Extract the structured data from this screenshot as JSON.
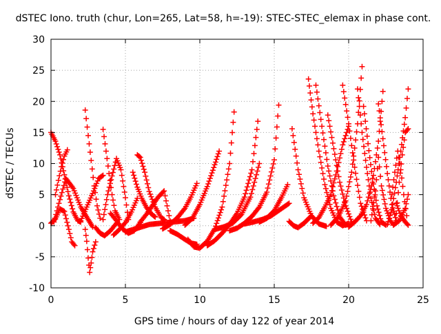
{
  "chart_data": {
    "type": "scatter",
    "title": "dSTEC Iono. truth (chur, Lon=265, Lat=58, h=-19): STEC-STEC_elemax in phase cont.",
    "xlabel": "GPS time / hours of day 122 of year 2014",
    "ylabel": "dSTEC  / TECUs",
    "xlim": [
      0,
      25
    ],
    "ylim": [
      -10,
      30
    ],
    "x_ticks": [
      0,
      5,
      10,
      15,
      20,
      25
    ],
    "x_tick_labels": [
      "0",
      "5",
      "10",
      "15",
      "20",
      "25"
    ],
    "y_ticks": [
      -10,
      -5,
      0,
      5,
      10,
      15,
      20,
      25,
      30
    ],
    "y_tick_labels": [
      "-10",
      "-5",
      "0",
      "5",
      "10",
      "15",
      "20",
      "25",
      "30"
    ],
    "grid": true,
    "grid_style": "dotted",
    "marker": "+",
    "color": "#ff0000",
    "series": [
      {
        "x": [
          0.0,
          0.3,
          0.6,
          0.9,
          1.2,
          1.5,
          1.8,
          2.0
        ],
        "y": [
          15.0,
          13.6,
          11.4,
          8.2,
          4.8,
          2.2,
          0.8,
          0.6
        ]
      },
      {
        "x": [
          0.0,
          0.3,
          0.6,
          0.9,
          1.2,
          1.4,
          1.6
        ],
        "y": [
          0.4,
          1.1,
          2.7,
          2.3,
          -0.6,
          -2.6,
          -3.2
        ]
      },
      {
        "x": [
          0.3,
          0.5,
          0.7,
          0.9,
          1.1
        ],
        "y": [
          5.0,
          7.3,
          9.5,
          11.2,
          12.2
        ]
      },
      {
        "x": [
          0.2,
          0.6,
          1.0,
          1.5,
          2.0,
          2.5,
          2.8
        ],
        "y": [
          0.6,
          4.2,
          7.6,
          6.0,
          3.0,
          1.0,
          -0.2
        ]
      },
      {
        "x": [
          2.3,
          2.5,
          2.7,
          2.9,
          3.1,
          3.3
        ],
        "y": [
          18.6,
          14.5,
          10.5,
          6.4,
          3.2,
          1.2
        ]
      },
      {
        "x": [
          2.3,
          2.4,
          2.5,
          2.6,
          2.7,
          2.8,
          3.0
        ],
        "y": [
          -0.6,
          -2.5,
          -5.2,
          -7.5,
          -6.0,
          -4.2,
          -2.6
        ]
      },
      {
        "x": [
          2.0,
          2.4,
          2.8,
          3.2,
          3.5
        ],
        "y": [
          0.8,
          3.0,
          5.2,
          7.6,
          8.1
        ]
      },
      {
        "x": [
          3.5,
          3.7,
          3.9,
          4.1,
          4.3,
          4.6
        ],
        "y": [
          15.5,
          12.0,
          8.4,
          5.0,
          2.4,
          1.0
        ]
      },
      {
        "x": [
          3.5,
          3.8,
          4.1,
          4.4,
          4.7,
          5.0,
          5.2
        ],
        "y": [
          1.0,
          5.0,
          8.0,
          10.8,
          9.0,
          4.5,
          1.0
        ]
      },
      {
        "x": [
          3.0,
          3.3,
          3.6,
          4.0,
          4.4
        ],
        "y": [
          -0.3,
          -1.2,
          -1.6,
          -0.8,
          0.4
        ]
      },
      {
        "x": [
          4.0,
          4.4,
          4.8,
          5.2,
          5.6,
          6.0
        ],
        "y": [
          2.0,
          0.8,
          -0.5,
          -1.2,
          -0.8,
          0.5
        ]
      },
      {
        "x": [
          4.2,
          4.6,
          5.0,
          5.4,
          5.8
        ],
        "y": [
          -1.5,
          -0.6,
          0.5,
          2.2,
          4.4
        ]
      },
      {
        "x": [
          5.8,
          6.0,
          6.3,
          6.6,
          7.0,
          7.4,
          7.6
        ],
        "y": [
          11.4,
          11.0,
          8.6,
          5.5,
          3.0,
          1.3,
          1.0
        ]
      },
      {
        "x": [
          5.5,
          5.8,
          6.1,
          6.4,
          6.7,
          7.0
        ],
        "y": [
          8.6,
          6.2,
          4.4,
          3.0,
          2.0,
          1.4
        ]
      },
      {
        "x": [
          6.0,
          6.4,
          6.8,
          7.2,
          7.6,
          8.0
        ],
        "y": [
          0.6,
          1.8,
          3.2,
          4.6,
          5.6,
          0.8
        ]
      },
      {
        "x": [
          5.0,
          5.8,
          6.6,
          7.4,
          8.2,
          9.0,
          9.6
        ],
        "y": [
          -1.0,
          -0.4,
          0.2,
          0.4,
          0.6,
          0.8,
          1.2
        ]
      },
      {
        "x": [
          7.5,
          8.0,
          8.5,
          9.0,
          9.4,
          9.8
        ],
        "y": [
          -0.5,
          0.2,
          1.3,
          2.8,
          4.6,
          6.8
        ]
      },
      {
        "x": [
          8.0,
          8.5,
          9.0,
          9.4,
          9.8
        ],
        "y": [
          -0.8,
          -1.4,
          -2.2,
          -2.8,
          -3.0
        ]
      },
      {
        "x": [
          9.2,
          9.6,
          10.0,
          10.5,
          11.0,
          11.5,
          12.0,
          12.3
        ],
        "y": [
          -2.2,
          -3.4,
          -3.6,
          -2.5,
          -0.5,
          3.0,
          10.0,
          18.3
        ]
      },
      {
        "x": [
          9.0,
          9.5,
          10.0,
          10.5,
          11.0,
          11.3
        ],
        "y": [
          0.1,
          1.2,
          3.4,
          6.3,
          9.8,
          12.0
        ]
      },
      {
        "x": [
          10.5,
          11.0,
          11.5,
          12.0,
          12.5,
          13.0,
          13.5,
          13.9
        ],
        "y": [
          -3.2,
          -2.4,
          -1.2,
          0.2,
          2.0,
          4.6,
          9.0,
          16.8
        ]
      },
      {
        "x": [
          12.0,
          12.5,
          13.0,
          13.5,
          14.0,
          14.5,
          15.0,
          15.3
        ],
        "y": [
          -0.8,
          -0.4,
          0.4,
          1.5,
          3.0,
          5.4,
          10.6,
          19.4
        ]
      },
      {
        "x": [
          11.0,
          11.6,
          12.2,
          12.8,
          13.4,
          14.0
        ],
        "y": [
          -0.6,
          -0.2,
          0.4,
          1.8,
          4.6,
          10.0
        ]
      },
      {
        "x": [
          14.0,
          14.5,
          15.0,
          15.5,
          15.9
        ],
        "y": [
          0.6,
          1.2,
          2.4,
          4.6,
          6.6
        ]
      },
      {
        "x": [
          13.0,
          13.6,
          14.2,
          14.8,
          15.4,
          16.0
        ],
        "y": [
          0.3,
          0.6,
          1.0,
          1.6,
          2.6,
          3.6
        ]
      },
      {
        "x": [
          16.0,
          16.3,
          16.6,
          17.0,
          17.5
        ],
        "y": [
          0.7,
          0.0,
          -0.3,
          0.4,
          1.6
        ]
      },
      {
        "x": [
          16.2,
          16.6,
          17.0,
          17.5,
          18.0,
          18.5
        ],
        "y": [
          15.6,
          9.0,
          4.5,
          1.6,
          0.3,
          -0.1
        ]
      },
      {
        "x": [
          17.6,
          18.0,
          18.4,
          18.8,
          19.2,
          19.6,
          20.0
        ],
        "y": [
          0.4,
          1.3,
          3.0,
          5.0,
          8.8,
          13.0,
          16.0
        ]
      },
      {
        "x": [
          17.3,
          17.6,
          18.0,
          18.4,
          18.8,
          19.2,
          19.6,
          20.0
        ],
        "y": [
          23.6,
          18.0,
          12.0,
          6.6,
          2.8,
          0.6,
          0.0,
          0.4
        ]
      },
      {
        "x": [
          17.8,
          18.2,
          18.6,
          19.0,
          19.4,
          19.8
        ],
        "y": [
          22.6,
          16.0,
          9.6,
          4.8,
          1.4,
          0.1
        ]
      },
      {
        "x": [
          18.6,
          19.0,
          19.4,
          19.8,
          20.2
        ],
        "y": [
          17.8,
          12.4,
          7.0,
          3.2,
          0.6
        ]
      },
      {
        "x": [
          18.8,
          19.3,
          19.8,
          20.2,
          20.6,
          20.9
        ],
        "y": [
          0.1,
          1.4,
          4.0,
          8.6,
          16.4,
          25.6
        ]
      },
      {
        "x": [
          19.6,
          20.0,
          20.4,
          20.8,
          21.2
        ],
        "y": [
          22.6,
          16.4,
          9.4,
          3.6,
          0.8
        ]
      },
      {
        "x": [
          20.0,
          20.4,
          20.8,
          21.2,
          21.6,
          22.0,
          22.3
        ],
        "y": [
          -0.2,
          0.6,
          1.6,
          3.4,
          7.0,
          13.6,
          21.6
        ]
      },
      {
        "x": [
          20.6,
          20.9,
          21.2,
          21.5,
          21.8,
          22.1
        ],
        "y": [
          22.0,
          15.0,
          9.4,
          4.4,
          1.2,
          0.2
        ]
      },
      {
        "x": [
          21.0,
          21.3,
          21.6,
          21.9,
          22.2,
          22.5
        ],
        "y": [
          19.2,
          13.2,
          7.6,
          3.2,
          0.6,
          0.1
        ]
      },
      {
        "x": [
          21.5,
          21.8,
          22.0,
          22.2,
          22.5,
          22.8,
          23.0
        ],
        "y": [
          0.8,
          5.6,
          11.0,
          6.4,
          2.8,
          0.8,
          0.2
        ]
      },
      {
        "x": [
          22.0,
          22.3,
          22.6,
          22.9,
          23.2
        ],
        "y": [
          19.6,
          14.0,
          8.4,
          3.4,
          0.8
        ]
      },
      {
        "x": [
          22.6,
          22.9,
          23.2,
          23.5,
          23.8,
          24.0
        ],
        "y": [
          0.2,
          2.6,
          7.0,
          12.0,
          17.4,
          22.0
        ]
      },
      {
        "x": [
          22.9,
          23.1,
          23.3,
          23.5,
          23.7,
          23.9
        ],
        "y": [
          5.0,
          8.6,
          12.0,
          9.0,
          5.0,
          1.6
        ]
      },
      {
        "x": [
          23.2,
          23.4,
          23.6,
          23.8,
          24.0
        ],
        "y": [
          2.0,
          7.0,
          11.4,
          15.0,
          15.6
        ]
      },
      {
        "x": [
          23.0,
          23.4,
          23.8,
          24.0
        ],
        "y": [
          0.1,
          0.8,
          2.8,
          5.0
        ]
      },
      {
        "x": [
          23.2,
          23.5,
          23.8,
          24.0
        ],
        "y": [
          3.6,
          1.6,
          0.6,
          0.1
        ]
      }
    ]
  }
}
